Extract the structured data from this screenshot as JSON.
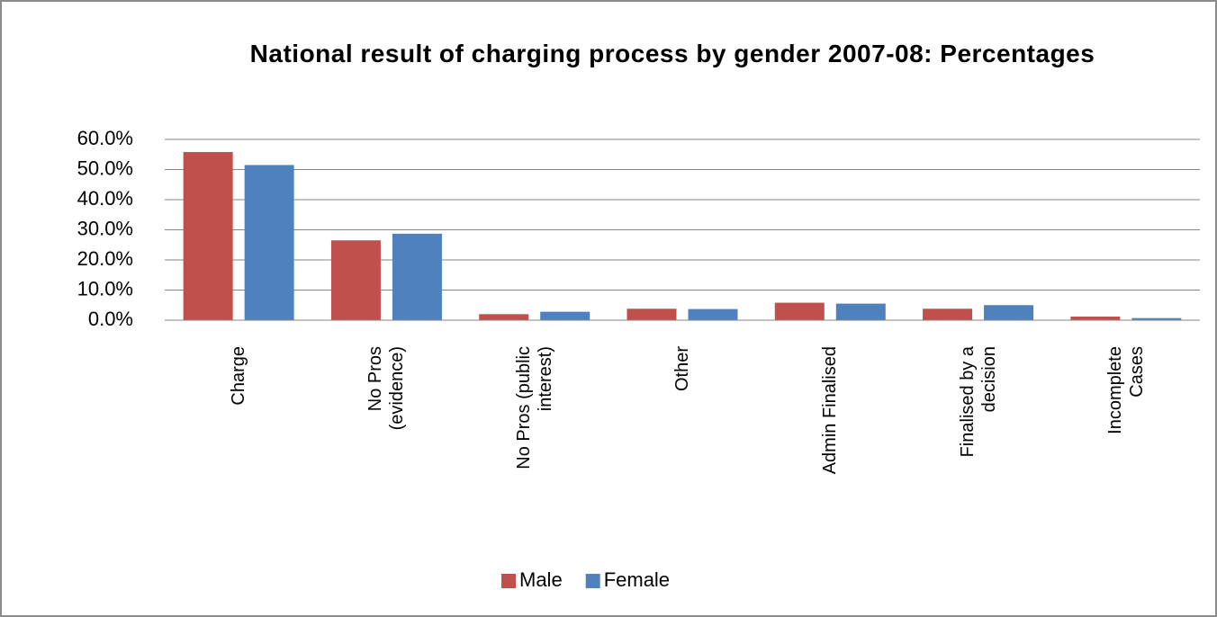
{
  "chart_data": {
    "type": "bar",
    "title": "National result of charging process by gender 2007-08: Percentages",
    "categories": [
      "Charge",
      "No Pros (evidence)",
      "No Pros  (public interest)",
      "Other",
      "Admin Finalised",
      "Finalised by a decision",
      "Incomplete Cases"
    ],
    "series": [
      {
        "name": "Male",
        "color": "#c0504d",
        "values": [
          55.8,
          26.5,
          2.0,
          3.8,
          5.8,
          3.8,
          1.2
        ]
      },
      {
        "name": "Female",
        "color": "#4f81bd",
        "values": [
          51.5,
          28.7,
          2.8,
          3.7,
          5.5,
          5.0,
          0.7
        ]
      }
    ],
    "ylim": [
      0,
      60
    ],
    "yticks": [
      {
        "value": 0,
        "label": "0.0%"
      },
      {
        "value": 10,
        "label": "10.0%"
      },
      {
        "value": 20,
        "label": "20.0%"
      },
      {
        "value": 30,
        "label": "30.0%"
      },
      {
        "value": 40,
        "label": "40.0%"
      },
      {
        "value": 50,
        "label": "50.0%"
      },
      {
        "value": 60,
        "label": "60.0%"
      }
    ],
    "grid": true,
    "legend": "bottom"
  }
}
